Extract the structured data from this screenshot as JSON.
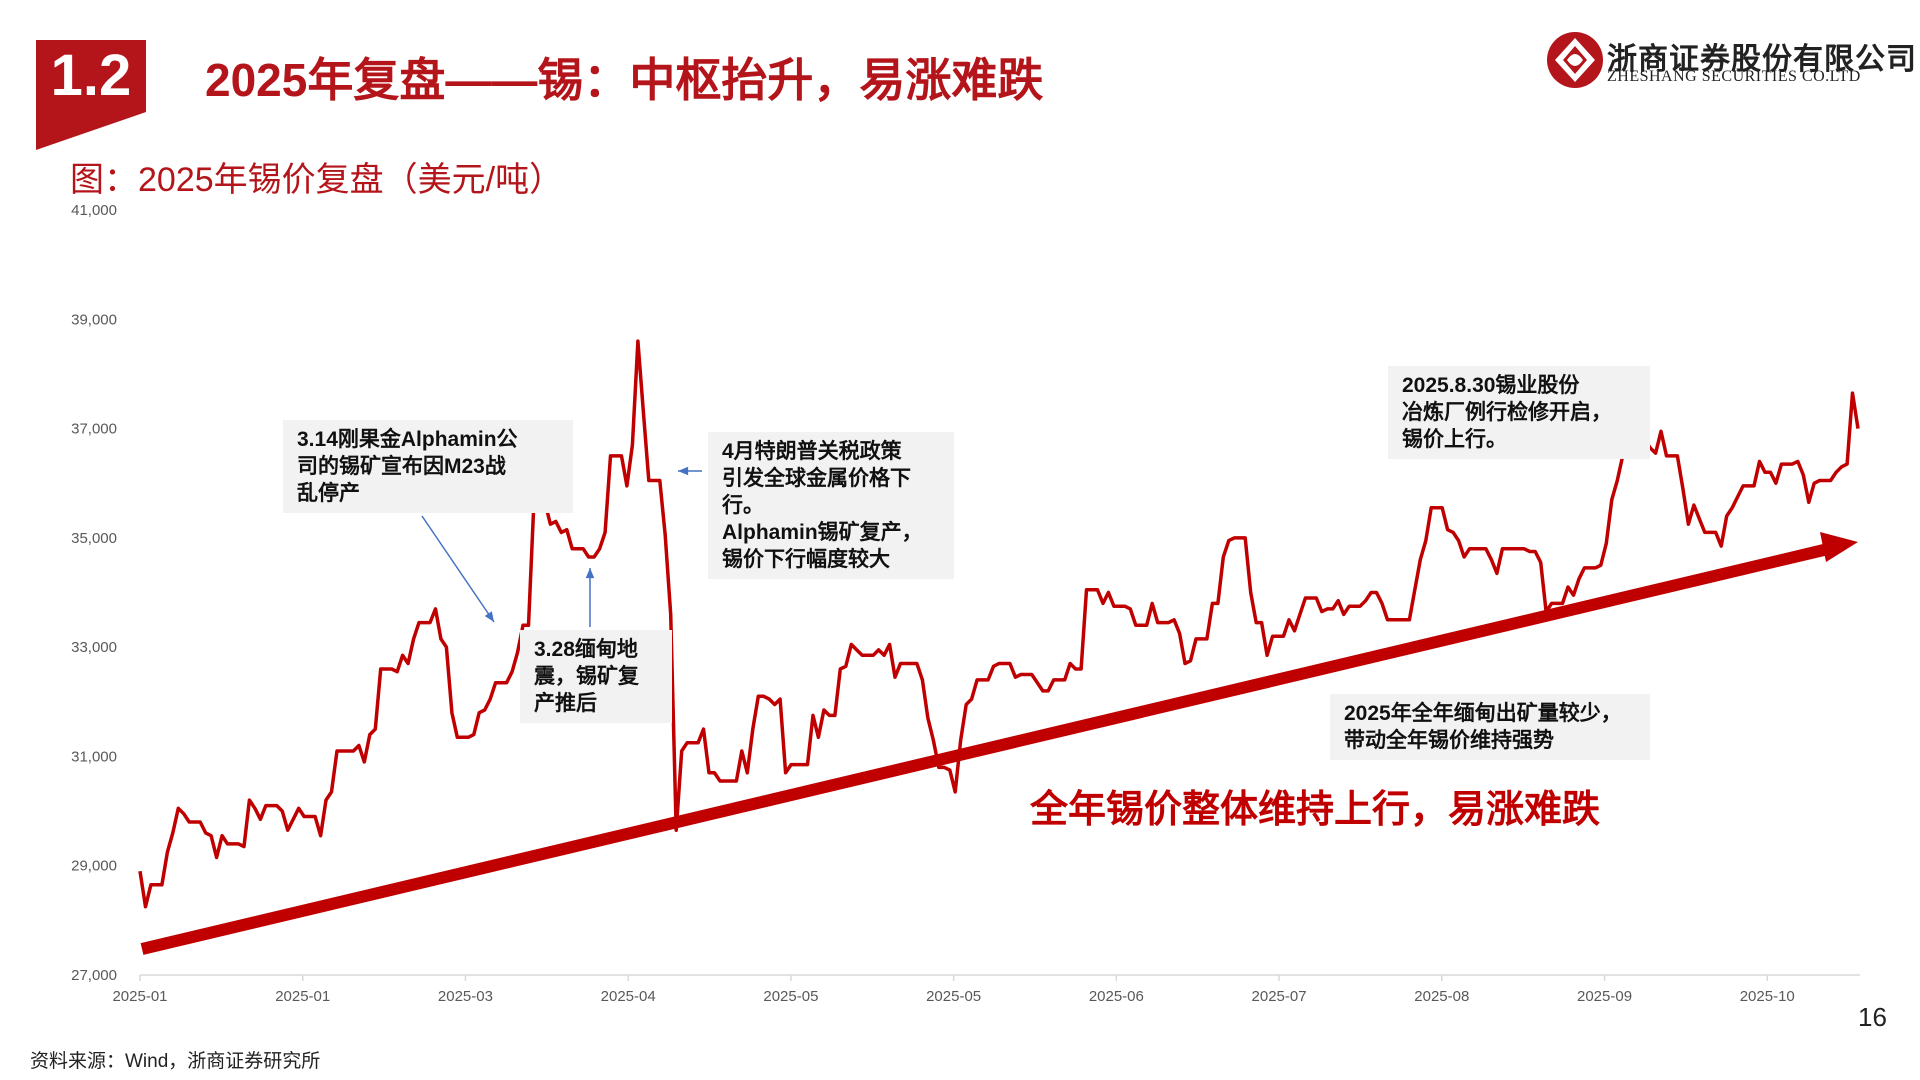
{
  "header": {
    "section_number": "1.2",
    "title": "2025年复盘——锡：中枢抬升，易涨难跌",
    "company_cn": "浙商证券股份有限公司",
    "company_en": "ZHESHANG SECURITIES CO.LTD",
    "brand_color": "#b4151b"
  },
  "figure_caption": "图：2025年锡价复盘（美元/吨）",
  "chart_data": {
    "type": "line",
    "title": "",
    "xlabel": "",
    "ylabel": "",
    "ylim": [
      27000,
      41000
    ],
    "y_ticks": [
      "27,000",
      "29,000",
      "31,000",
      "33,000",
      "35,000",
      "37,000",
      "39,000",
      "41,000"
    ],
    "x_ticks": [
      "2025-01",
      "2025-01",
      "2025-03",
      "2025-04",
      "2025-05",
      "2025-05",
      "2025-06",
      "2025-07",
      "2025-08",
      "2025-09",
      "2025-10"
    ],
    "grid": false,
    "line_color": "#c00000",
    "series": [
      {
        "values": [
          28900,
          28250,
          28650,
          28650,
          28650,
          29250,
          29600,
          30050,
          29950,
          29800,
          29800,
          29800,
          29600,
          29550,
          29150,
          29550,
          29400,
          29400,
          29400,
          29350,
          30200,
          30050,
          29850,
          30100,
          30100,
          30100,
          30000,
          29650,
          29850,
          30050,
          29900,
          29900,
          29900,
          29550,
          30200,
          30350,
          31100,
          31100,
          31100,
          31100,
          31200,
          30900,
          31400,
          31500,
          32600,
          32600,
          32600,
          32550,
          32850,
          32700,
          33150,
          33450,
          33450,
          33450,
          33700,
          33150,
          33000,
          31800,
          31350,
          31350,
          31350,
          31400,
          31800,
          31850,
          32050,
          32350,
          32350,
          32350,
          32550,
          32900,
          33400,
          33400,
          35650,
          35650,
          35650,
          35250,
          35300,
          35100,
          35150,
          34800,
          34800,
          34800,
          34650,
          34650,
          34800,
          35100,
          36500,
          36500,
          36500,
          35950,
          36700,
          38600,
          37300,
          36050,
          36050,
          36050,
          35050,
          33600,
          29650,
          31100,
          31250,
          31250,
          31250,
          31500,
          30700,
          30700,
          30550,
          30550,
          30550,
          30550,
          31100,
          30700,
          31500,
          32100,
          32100,
          32050,
          31950,
          32050,
          30700,
          30850,
          30850,
          30850,
          30850,
          31750,
          31350,
          31850,
          31750,
          31750,
          32600,
          32650,
          33050,
          32950,
          32850,
          32850,
          32850,
          32950,
          32850,
          33050,
          32450,
          32700,
          32700,
          32700,
          32700,
          32400,
          31700,
          31300,
          30800,
          30800,
          30750,
          30350,
          31300,
          31950,
          32050,
          32400,
          32400,
          32400,
          32650,
          32700,
          32700,
          32700,
          32450,
          32500,
          32500,
          32500,
          32350,
          32200,
          32200,
          32400,
          32400,
          32400,
          32700,
          32600,
          32600,
          34050,
          34050,
          34050,
          33800,
          34000,
          33750,
          33750,
          33750,
          33700,
          33400,
          33400,
          33400,
          33800,
          33450,
          33450,
          33450,
          33500,
          33250,
          32700,
          32750,
          33150,
          33150,
          33150,
          33800,
          33800,
          34650,
          34950,
          35000,
          35000,
          35000,
          34000,
          33450,
          33450,
          32850,
          33200,
          33200,
          33200,
          33500,
          33300,
          33600,
          33900,
          33900,
          33900,
          33650,
          33700,
          33700,
          33850,
          33600,
          33750,
          33750,
          33750,
          33850,
          34000,
          34000,
          33800,
          33500,
          33500,
          33500,
          33500,
          33500,
          34050,
          34600,
          34950,
          35550,
          35550,
          35550,
          35150,
          35100,
          34950,
          34650,
          34800,
          34800,
          34800,
          34800,
          34600,
          34350,
          34800,
          34800,
          34800,
          34800,
          34800,
          34750,
          34750,
          34550,
          33650,
          33800,
          33800,
          33800,
          34100,
          33950,
          34250,
          34450,
          34450,
          34450,
          34500,
          34900,
          35700,
          36050,
          36500,
          37750,
          37750,
          37750,
          36800,
          36650,
          36550,
          36950,
          36500,
          36500,
          36500,
          35900,
          35250,
          35600,
          35350,
          35100,
          35100,
          35100,
          34850,
          35400,
          35550,
          35750,
          35950,
          35950,
          35950,
          36400,
          36200,
          36200,
          36000,
          36350,
          36350,
          36350,
          36400,
          36150,
          35650,
          36000,
          36050,
          36050,
          36050,
          36200,
          36300,
          36350,
          37650,
          37000
        ]
      }
    ],
    "trend_arrow_color": "#c00000"
  },
  "annotations": {
    "note_alphamin_halt": "3.14刚果金Alphamin公\n司的锡矿宣布因M23战\n乱停产",
    "note_myanmar_quake": "3.28缅甸地\n震，锡矿复\n产推后",
    "note_tariff": "4月特朗普关税政策\n引发全球金属价格下\n行。\nAlphamin锡矿复产，\n锡价下行幅度较大",
    "note_yunnan_tin": "2025.8.30锡业股份\n冶炼厂例行检修开启，\n锡价上行。",
    "note_myanmar_output": "2025年全年缅甸出矿量较少，\n带动全年锡价维持强势",
    "summary_callout": "全年锡价整体维持上行，易涨难跌"
  },
  "footer": {
    "source": "资料来源：Wind，浙商证券研究所",
    "page_number": "16"
  }
}
